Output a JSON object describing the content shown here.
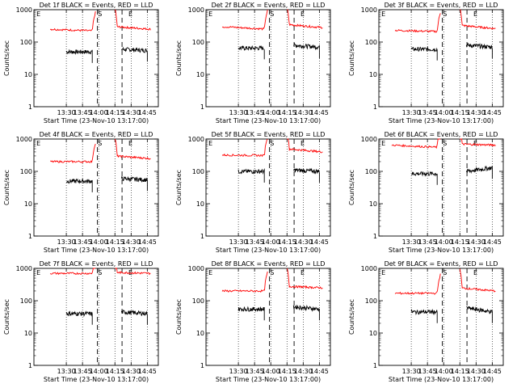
{
  "figure": {
    "shared": {
      "ylabel": "Counts/sec",
      "xlabel": "Start Time (23-Nov-10 13:17:00)",
      "x_tick_labels": [
        "13:30",
        "13:45",
        "14:00",
        "14:15",
        "14:30",
        "14:45"
      ],
      "y_tick_labels": [
        "1",
        "10",
        "100",
        "1000"
      ],
      "marker_labels": {
        "start": "E",
        "saa_in": "S",
        "end": "E"
      },
      "colors": {
        "events": "#000000",
        "lld": "#ff0000",
        "axes": "#000000"
      }
    }
  },
  "chart_data": [
    {
      "type": "line",
      "title": "Det 1f BLACK = Events, RED = LLD",
      "ylim": [
        1,
        1000
      ],
      "yscale": "log",
      "xlabel": "Start Time (23-Nov-10 13:17:00)",
      "ylabel": "Counts/sec",
      "grid": "vertical dotted",
      "series": [
        {
          "name": "Events",
          "color": "#000000",
          "segments": [
            [
              [
                13.5,
                50
              ],
              [
                13.9,
                50
              ]
            ],
            [
              [
                14.35,
                60
              ],
              [
                14.75,
                55
              ]
            ]
          ]
        },
        {
          "name": "LLD",
          "color": "#ff0000",
          "segments": [
            [
              [
                13.25,
                250
              ],
              [
                13.95,
                220
              ]
            ],
            [
              [
                14.25,
                300
              ],
              [
                14.8,
                250
              ]
            ]
          ]
        }
      ]
    },
    {
      "type": "line",
      "title": "Det 2f BLACK = Events, RED = LLD",
      "ylim": [
        1,
        1000
      ],
      "yscale": "log",
      "xlabel": "Start Time (23-Nov-10 13:17:00)",
      "ylabel": "Counts/sec",
      "grid": "vertical dotted",
      "series": [
        {
          "name": "Events",
          "color": "#000000",
          "segments": [
            [
              [
                13.5,
                65
              ],
              [
                13.9,
                65
              ]
            ],
            [
              [
                14.35,
                80
              ],
              [
                14.75,
                70
              ]
            ]
          ]
        },
        {
          "name": "LLD",
          "color": "#ff0000",
          "segments": [
            [
              [
                13.25,
                300
              ],
              [
                13.95,
                250
              ]
            ],
            [
              [
                14.25,
                350
              ],
              [
                14.8,
                280
              ]
            ]
          ]
        }
      ]
    },
    {
      "type": "line",
      "title": "Det 3f BLACK = Events, RED = LLD",
      "ylim": [
        1,
        1000
      ],
      "yscale": "log",
      "xlabel": "Start Time (23-Nov-10 13:17:00)",
      "ylabel": "Counts/sec",
      "grid": "vertical dotted",
      "series": [
        {
          "name": "Events",
          "color": "#000000",
          "segments": [
            [
              [
                13.5,
                60
              ],
              [
                13.9,
                60
              ]
            ],
            [
              [
                14.35,
                80
              ],
              [
                14.75,
                70
              ]
            ]
          ]
        },
        {
          "name": "LLD",
          "color": "#ff0000",
          "segments": [
            [
              [
                13.25,
                230
              ],
              [
                13.95,
                210
              ]
            ],
            [
              [
                14.25,
                330
              ],
              [
                14.8,
                260
              ]
            ]
          ]
        }
      ]
    },
    {
      "type": "line",
      "title": "Det 4f BLACK = Events, RED = LLD",
      "ylim": [
        1,
        1000
      ],
      "yscale": "log",
      "xlabel": "Start Time (23-Nov-10 13:17:00)",
      "ylabel": "Counts/sec",
      "grid": "vertical dotted",
      "series": [
        {
          "name": "Events",
          "color": "#000000",
          "segments": [
            [
              [
                13.5,
                50
              ],
              [
                13.9,
                50
              ]
            ],
            [
              [
                14.35,
                60
              ],
              [
                14.75,
                55
              ]
            ]
          ]
        },
        {
          "name": "LLD",
          "color": "#ff0000",
          "segments": [
            [
              [
                13.25,
                200
              ],
              [
                13.95,
                200
              ]
            ],
            [
              [
                14.25,
                300
              ],
              [
                14.8,
                250
              ]
            ]
          ]
        }
      ]
    },
    {
      "type": "line",
      "title": "Det 5f BLACK = Events, RED = LLD",
      "ylim": [
        1,
        1000
      ],
      "yscale": "log",
      "xlabel": "Start Time (23-Nov-10 13:17:00)",
      "ylabel": "Counts/sec",
      "grid": "vertical dotted",
      "series": [
        {
          "name": "Events",
          "color": "#000000",
          "segments": [
            [
              [
                13.5,
                100
              ],
              [
                13.9,
                100
              ]
            ],
            [
              [
                14.35,
                110
              ],
              [
                14.75,
                100
              ]
            ]
          ]
        },
        {
          "name": "LLD",
          "color": "#ff0000",
          "segments": [
            [
              [
                13.25,
                320
              ],
              [
                13.95,
                310
              ]
            ],
            [
              [
                14.25,
                500
              ],
              [
                14.8,
                400
              ]
            ]
          ]
        }
      ]
    },
    {
      "type": "line",
      "title": "Det 6f BLACK = Events, RED = LLD",
      "ylim": [
        1,
        1000
      ],
      "yscale": "log",
      "xlabel": "Start Time (23-Nov-10 13:17:00)",
      "ylabel": "Counts/sec",
      "grid": "vertical dotted",
      "series": [
        {
          "name": "Events",
          "color": "#000000",
          "segments": [
            [
              [
                13.5,
                85
              ],
              [
                13.9,
                85
              ]
            ],
            [
              [
                14.35,
                100
              ],
              [
                14.75,
                130
              ]
            ]
          ]
        },
        {
          "name": "LLD",
          "color": "#ff0000",
          "segments": [
            [
              [
                13.2,
                650
              ],
              [
                13.95,
                550
              ]
            ],
            [
              [
                14.25,
                700
              ],
              [
                14.8,
                650
              ]
            ]
          ]
        }
      ]
    },
    {
      "type": "line",
      "title": "Det 7f BLACK = Events, RED = LLD",
      "ylim": [
        1,
        1000
      ],
      "yscale": "log",
      "xlabel": "Start Time (23-Nov-10 13:17:00)",
      "ylabel": "Counts/sec",
      "grid": "vertical dotted",
      "series": [
        {
          "name": "Events",
          "color": "#000000",
          "segments": [
            [
              [
                13.5,
                40
              ],
              [
                13.9,
                40
              ]
            ],
            [
              [
                14.35,
                45
              ],
              [
                14.75,
                40
              ]
            ]
          ]
        },
        {
          "name": "LLD",
          "color": "#ff0000",
          "segments": [
            [
              [
                13.25,
                700
              ],
              [
                13.95,
                700
              ]
            ],
            [
              [
                14.25,
                750
              ],
              [
                14.8,
                700
              ]
            ]
          ]
        }
      ]
    },
    {
      "type": "line",
      "title": "Det 8f BLACK = Events, RED = LLD",
      "ylim": [
        1,
        1000
      ],
      "yscale": "log",
      "xlabel": "Start Time (23-Nov-10 13:17:00)",
      "ylabel": "Counts/sec",
      "grid": "vertical dotted",
      "series": [
        {
          "name": "Events",
          "color": "#000000",
          "segments": [
            [
              [
                13.5,
                55
              ],
              [
                13.9,
                55
              ]
            ],
            [
              [
                14.35,
                65
              ],
              [
                14.75,
                55
              ]
            ]
          ]
        },
        {
          "name": "LLD",
          "color": "#ff0000",
          "segments": [
            [
              [
                13.25,
                200
              ],
              [
                13.95,
                200
              ]
            ],
            [
              [
                14.25,
                280
              ],
              [
                14.8,
                250
              ]
            ]
          ]
        }
      ]
    },
    {
      "type": "line",
      "title": "Det 9f BLACK = Events, RED = LLD",
      "ylim": [
        1,
        1000
      ],
      "yscale": "log",
      "xlabel": "Start Time (23-Nov-10 13:17:00)",
      "ylabel": "Counts/sec",
      "grid": "vertical dotted",
      "series": [
        {
          "name": "Events",
          "color": "#000000",
          "segments": [
            [
              [
                13.5,
                45
              ],
              [
                13.9,
                45
              ]
            ],
            [
              [
                14.35,
                60
              ],
              [
                14.75,
                45
              ]
            ]
          ]
        },
        {
          "name": "LLD",
          "color": "#ff0000",
          "segments": [
            [
              [
                13.25,
                170
              ],
              [
                13.95,
                170
              ]
            ],
            [
              [
                14.25,
                250
              ],
              [
                14.8,
                200
              ]
            ]
          ]
        }
      ]
    }
  ]
}
